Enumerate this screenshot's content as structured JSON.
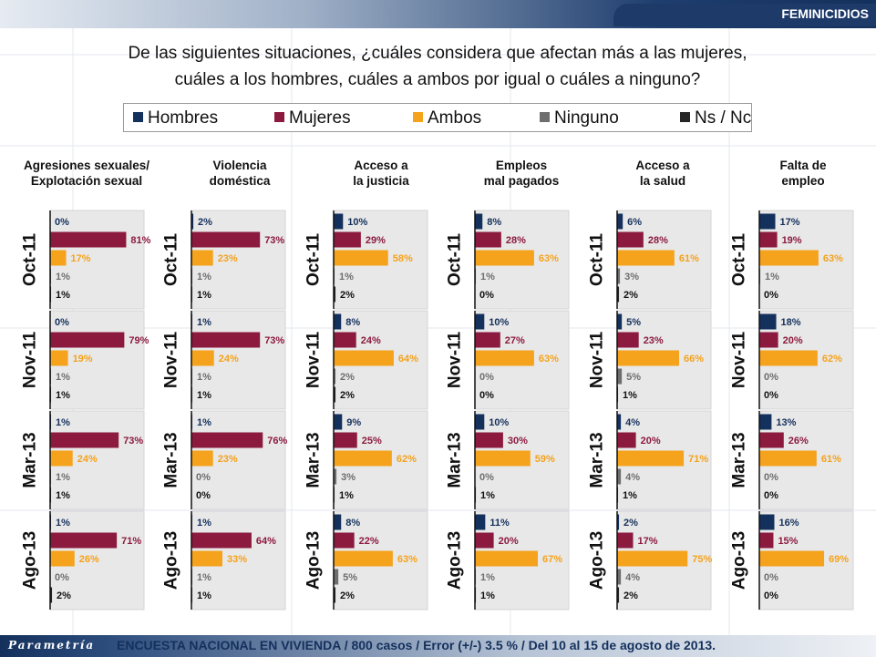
{
  "header": {
    "label": "FEMINICIDIOS"
  },
  "question": {
    "line1": "De las siguientes situaciones, ¿cuáles considera que afectan más a las mujeres,",
    "line2": "cuáles a los hombres, cuáles a ambos por igual o cuáles a ninguno?"
  },
  "footer": {
    "brand": "Parametría",
    "note": "ENCUESTA NACIONAL EN VIVIENDA / 800 casos / Error (+/-) 3.5 % / Del 10 al 15 de agosto de 2013."
  },
  "colors": {
    "Hombres": "#14305c",
    "Mujeres": "#8c1a3f",
    "Ambos": "#f5a21c",
    "Ninguno": "#6e6e6e",
    "Ns / Nc": "#262626"
  },
  "chart_data": {
    "type": "bar",
    "orientation": "horizontal",
    "grid": false,
    "legend_position": "top",
    "xlim": [
      0,
      100
    ],
    "series_names": [
      "Hombres",
      "Mujeres",
      "Ambos",
      "Ninguno",
      "Ns / Nc"
    ],
    "periods": [
      "Oct-11",
      "Nov-11",
      "Mar-13",
      "Ago-13"
    ],
    "groups": [
      {
        "title": [
          "Agresiones sexuales/",
          "Explotación sexual"
        ],
        "values": [
          [
            0,
            81,
            17,
            1,
            1
          ],
          [
            0,
            79,
            19,
            1,
            1
          ],
          [
            1,
            73,
            24,
            1,
            1
          ],
          [
            1,
            71,
            26,
            0,
            2
          ]
        ]
      },
      {
        "title": [
          "Violencia",
          "doméstica"
        ],
        "values": [
          [
            2,
            73,
            23,
            1,
            1
          ],
          [
            1,
            73,
            24,
            1,
            1
          ],
          [
            1,
            76,
            23,
            0,
            0
          ],
          [
            1,
            64,
            33,
            1,
            1
          ]
        ]
      },
      {
        "title": [
          "Acceso a",
          "la justicia"
        ],
        "values": [
          [
            10,
            29,
            58,
            1,
            2
          ],
          [
            8,
            24,
            64,
            2,
            2
          ],
          [
            9,
            25,
            62,
            3,
            1
          ],
          [
            8,
            22,
            63,
            5,
            2
          ]
        ]
      },
      {
        "title": [
          "Empleos",
          "mal pagados"
        ],
        "values": [
          [
            8,
            28,
            63,
            1,
            0
          ],
          [
            10,
            27,
            63,
            0,
            0
          ],
          [
            10,
            30,
            59,
            0,
            1
          ],
          [
            11,
            20,
            67,
            1,
            1
          ]
        ]
      },
      {
        "title": [
          "Acceso a",
          "la salud"
        ],
        "values": [
          [
            6,
            28,
            61,
            3,
            2
          ],
          [
            5,
            23,
            66,
            5,
            1
          ],
          [
            4,
            20,
            71,
            4,
            1
          ],
          [
            2,
            17,
            75,
            4,
            2
          ]
        ]
      },
      {
        "title": [
          "Falta de",
          "empleo"
        ],
        "values": [
          [
            17,
            19,
            63,
            1,
            0
          ],
          [
            18,
            20,
            62,
            0,
            0
          ],
          [
            13,
            26,
            61,
            0,
            0
          ],
          [
            16,
            15,
            69,
            0,
            0
          ]
        ]
      }
    ]
  }
}
